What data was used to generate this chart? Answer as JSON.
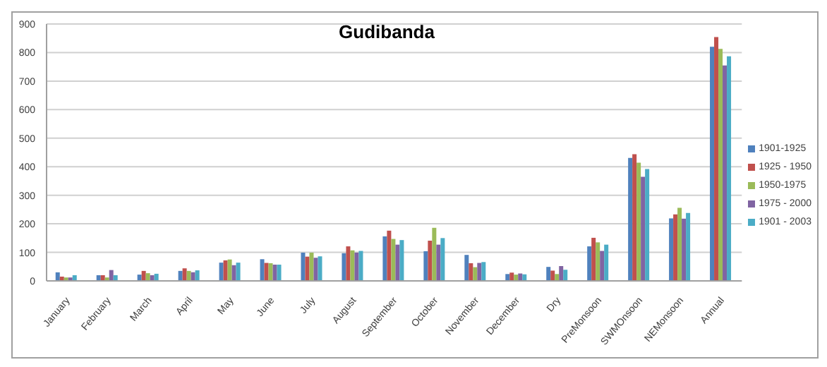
{
  "chart_data": {
    "type": "bar",
    "title": "Gudibanda",
    "categories": [
      "January",
      "February",
      "March",
      "April",
      "May",
      "June",
      "July",
      "August",
      "September",
      "October",
      "November",
      "December",
      "Dry",
      "PreMonsoon",
      "SWMOnsoon",
      "NEMonsoon",
      "Annual"
    ],
    "series": [
      {
        "name": "1901-1925",
        "color": "#4f81bd",
        "values": [
          30,
          20,
          22,
          35,
          64,
          76,
          99,
          97,
          156,
          104,
          91,
          24,
          49,
          121,
          431,
          219,
          820
        ]
      },
      {
        "name": "1925 - 1950",
        "color": "#c0504d",
        "values": [
          15,
          20,
          35,
          44,
          72,
          63,
          85,
          121,
          176,
          141,
          62,
          29,
          36,
          151,
          444,
          233,
          854
        ]
      },
      {
        "name": "1950-1975",
        "color": "#9bbb59",
        "values": [
          12,
          12,
          27,
          35,
          75,
          62,
          99,
          107,
          147,
          186,
          48,
          22,
          24,
          135,
          414,
          256,
          813
        ]
      },
      {
        "name": "1975 - 2000",
        "color": "#8064a2",
        "values": [
          12,
          38,
          20,
          30,
          55,
          57,
          81,
          99,
          127,
          127,
          63,
          26,
          52,
          105,
          365,
          218,
          755
        ]
      },
      {
        "name": "1901 - 2003",
        "color": "#4bacc6",
        "values": [
          20,
          20,
          25,
          37,
          64,
          57,
          86,
          105,
          143,
          150,
          66,
          23,
          39,
          127,
          392,
          238,
          787
        ]
      }
    ],
    "ylim": [
      0,
      900
    ],
    "yticks": [
      0,
      100,
      200,
      300,
      400,
      500,
      600,
      700,
      800,
      900
    ],
    "grid": "y",
    "legend": "right"
  }
}
